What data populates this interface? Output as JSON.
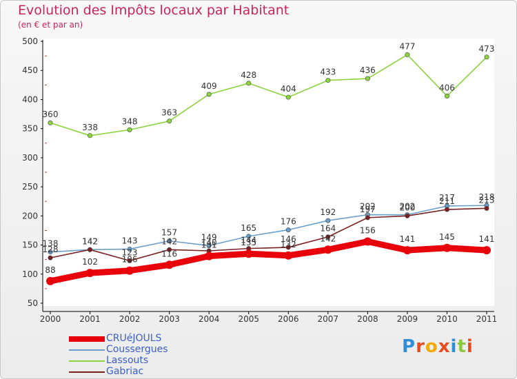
{
  "title": "Evolution des Impôts locaux par Habitant",
  "subtitle": "(en € et par an)",
  "logo": "Proxiti",
  "chart_data": {
    "type": "line",
    "title": "Evolution des Impôts locaux par Habitant",
    "subtitle": "(en € et par an)",
    "x": [
      "2000",
      "2001",
      "2002",
      "2003",
      "2004",
      "2005",
      "2006",
      "2007",
      "2008",
      "2009",
      "2010",
      "2011"
    ],
    "ylim": [
      50,
      500
    ],
    "yticks": [
      50,
      100,
      150,
      200,
      250,
      300,
      350,
      400,
      450,
      500
    ],
    "grid": false,
    "legend_position": "bottom-left",
    "series": [
      {
        "name": "CRUéJOULS",
        "color": "#e8000b",
        "values": [
          88,
          102,
          106,
          116,
          131,
          135,
          132,
          142,
          156,
          141,
          145,
          141
        ]
      },
      {
        "name": "Coussergues",
        "color": "#6a9ec8",
        "values": [
          138,
          142,
          143,
          157,
          149,
          165,
          176,
          192,
          202,
          202,
          217,
          218
        ]
      },
      {
        "name": "Lassouts",
        "color": "#8cd23c",
        "values": [
          360,
          338,
          348,
          363,
          409,
          428,
          404,
          433,
          436,
          477,
          406,
          473
        ]
      },
      {
        "name": "Gabriac",
        "color": "#7a2020",
        "values": [
          128,
          142,
          123,
          142,
          140,
          144,
          146,
          164,
          197,
          200,
          211,
          213
        ]
      }
    ]
  }
}
